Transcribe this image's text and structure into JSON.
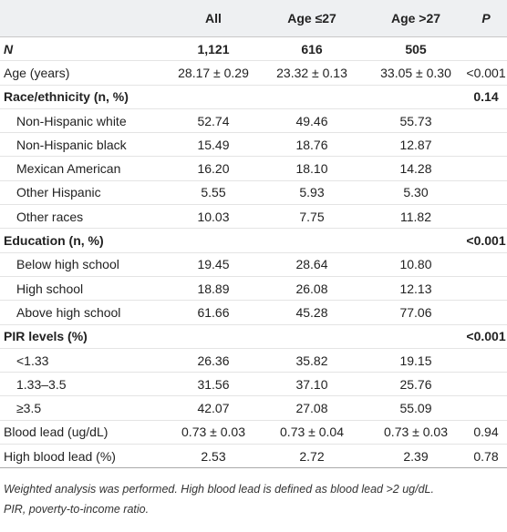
{
  "table": {
    "header": [
      null,
      "All",
      "Age ≤27",
      "Age >27",
      "P"
    ],
    "rows": [
      [
        "N",
        "1,121",
        "616",
        "505",
        null
      ],
      [
        "Age (years)",
        "28.17 ± 0.29",
        "23.32 ± 0.13",
        "33.05 ± 0.30",
        "<0.001"
      ],
      [
        "Race/ethnicity (n, %)",
        null,
        null,
        null,
        "0.14"
      ],
      [
        "Non-Hispanic white",
        "52.74",
        "49.46",
        "55.73",
        null
      ],
      [
        "Non-Hispanic black",
        "15.49",
        "18.76",
        "12.87",
        null
      ],
      [
        "Mexican American",
        "16.20",
        "18.10",
        "14.28",
        null
      ],
      [
        "Other Hispanic",
        "5.55",
        "5.93",
        "5.30",
        null
      ],
      [
        "Other races",
        "10.03",
        "7.75",
        "11.82",
        null
      ],
      [
        "Education (n, %)",
        null,
        null,
        null,
        "<0.001"
      ],
      [
        "Below high school",
        "19.45",
        "28.64",
        "10.80",
        null
      ],
      [
        "High school",
        "18.89",
        "26.08",
        "12.13",
        null
      ],
      [
        "Above high school",
        "61.66",
        "45.28",
        "77.06",
        null
      ],
      [
        "PIR levels (%)",
        null,
        null,
        null,
        "<0.001"
      ],
      [
        "<1.33",
        "26.36",
        "35.82",
        "19.15",
        null
      ],
      [
        "1.33–3.5",
        "31.56",
        "37.10",
        "25.76",
        null
      ],
      [
        "≥3.5",
        "42.07",
        "27.08",
        "55.09",
        null
      ],
      [
        "Blood lead (ug/dL)",
        "0.73 ± 0.03",
        "0.73 ± 0.04",
        "0.73 ± 0.03",
        "0.94"
      ],
      [
        "High blood lead (%)",
        "2.53",
        "2.72",
        "2.39",
        "0.78"
      ]
    ]
  },
  "footnote": [
    "Weighted analysis was performed. High blood lead is defined as blood lead >2 ug/dL.",
    "PIR, poverty-to-income ratio."
  ]
}
